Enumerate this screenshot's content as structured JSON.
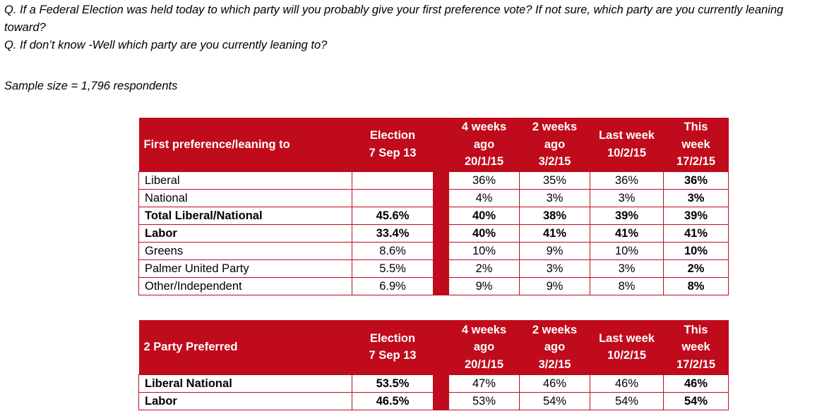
{
  "questions": [
    "Q. If a Federal Election was held today to which party will you probably give your first preference vote? If not sure, which party are you currently leaning toward?",
    "Q. If don’t know -Well which party are you currently leaning to?"
  ],
  "sample_size": "Sample size = 1,796 respondents",
  "columns": {
    "election": [
      "Election",
      "7 Sep 13"
    ],
    "w4": [
      "4 weeks",
      "ago",
      "20/1/15"
    ],
    "w2": [
      "2 weeks",
      "ago",
      "3/2/15"
    ],
    "lw": [
      "Last week",
      "10/2/15"
    ],
    "tw": [
      "This",
      "week",
      "17/2/15"
    ]
  },
  "table1": {
    "header": "First preference/leaning to",
    "rows": [
      {
        "label": "Liberal",
        "election": "",
        "w4": "36%",
        "w2": "35%",
        "lw": "36%",
        "tw": "36%"
      },
      {
        "label": "National",
        "election": "",
        "w4": "4%",
        "w2": "3%",
        "lw": "3%",
        "tw": "3%"
      },
      {
        "label": "Total Liberal/National",
        "election": "45.6%",
        "w4": "40%",
        "w2": "38%",
        "lw": "39%",
        "tw": "39%"
      },
      {
        "label": "Labor",
        "election": "33.4%",
        "w4": "40%",
        "w2": "41%",
        "lw": "41%",
        "tw": "41%"
      },
      {
        "label": "Greens",
        "election": "8.6%",
        "w4": "10%",
        "w2": "9%",
        "lw": "10%",
        "tw": "10%"
      },
      {
        "label": "Palmer United Party",
        "election": "5.5%",
        "w4": "2%",
        "w2": "3%",
        "lw": "3%",
        "tw": "2%"
      },
      {
        "label": "Other/Independent",
        "election": "6.9%",
        "w4": "9%",
        "w2": "9%",
        "lw": "8%",
        "tw": "8%"
      }
    ]
  },
  "table2": {
    "header": "2 Party Preferred",
    "rows": [
      {
        "label": "Liberal National",
        "election": "53.5%",
        "w4": "47%",
        "w2": "46%",
        "lw": "46%",
        "tw": "46%"
      },
      {
        "label": "Labor",
        "election": "46.5%",
        "w4": "53%",
        "w2": "54%",
        "lw": "54%",
        "tw": "54%"
      }
    ]
  },
  "colors": {
    "header_bg": "#c00b1c",
    "header_text": "#ffffff",
    "border": "#c00b1c"
  }
}
